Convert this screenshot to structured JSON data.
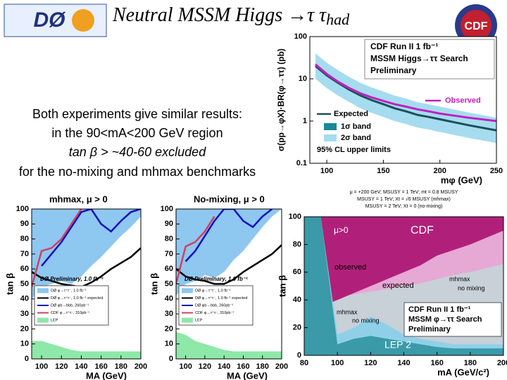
{
  "title": "Neutral MSSM Higgs →τ τ",
  "title_sub": "had",
  "logos": {
    "d0": "DØ",
    "cdf": "CDF"
  },
  "summary": [
    "Both experiments give similar results:",
    "in the 90<mA<200 GeV region",
    "tan β > ~40-60 excluded",
    "for the no-mixing and mhmax benchmarks"
  ],
  "chart_data": [
    {
      "type": "line",
      "x_label": "mφ (GeV)",
      "y_label": "σ(pp→φX)·BR(φ→ττ) (pb)",
      "log_y": true,
      "x": [
        90,
        100,
        110,
        120,
        130,
        140,
        150,
        160,
        170,
        180,
        190,
        200,
        225,
        250
      ],
      "xlim": [
        85,
        250
      ],
      "ylim": [
        0.1,
        100
      ],
      "xticks": [
        100,
        150,
        200,
        250
      ],
      "yticks": [
        0.1,
        1,
        10,
        100
      ],
      "series": [
        {
          "name": "Expected",
          "style": "line",
          "color": "#1d4f5a",
          "values": [
            20,
            12,
            8,
            5.5,
            4,
            3.1,
            2.5,
            2.0,
            1.7,
            1.4,
            1.25,
            1.1,
            0.8,
            0.6
          ]
        },
        {
          "name": "1σ  band",
          "style": "band",
          "color": "#17899a",
          "low": [
            14,
            8.4,
            5.6,
            3.9,
            2.8,
            2.2,
            1.75,
            1.4,
            1.2,
            1.0,
            0.88,
            0.77,
            0.56,
            0.42
          ],
          "high": [
            28,
            17,
            11,
            7.7,
            5.6,
            4.3,
            3.5,
            2.8,
            2.4,
            2.0,
            1.75,
            1.5,
            1.1,
            0.84
          ]
        },
        {
          "name": "2σ  band",
          "style": "band",
          "color": "#a6dcef",
          "low": [
            10,
            6,
            4,
            2.8,
            2,
            1.55,
            1.25,
            1.0,
            0.85,
            0.7,
            0.63,
            0.55,
            0.4,
            0.3
          ],
          "high": [
            40,
            24,
            16,
            11,
            8,
            6.2,
            5,
            4,
            3.4,
            2.8,
            2.5,
            2.2,
            1.6,
            1.2
          ]
        },
        {
          "name": "Observed",
          "style": "line",
          "color": "#c020c0",
          "values": [
            22,
            13,
            8.5,
            6,
            4.5,
            3.6,
            3.0,
            2.5,
            2.2,
            1.9,
            1.7,
            1.5,
            1.2,
            1.0
          ]
        }
      ],
      "legend_note": "95% CL upper limits",
      "legend_box": [
        "CDF Run II  1 fb⁻¹",
        "MSSM Higgs→ττ  Search",
        "Preliminary"
      ]
    },
    {
      "type": "line",
      "title": "mhmax, μ > 0",
      "x_label": "MA (GeV)",
      "y_label": "tan β",
      "x": [
        90,
        100,
        110,
        120,
        130,
        140,
        150,
        160,
        170,
        180,
        190,
        200
      ],
      "xlim": [
        90,
        200
      ],
      "ylim": [
        0,
        100
      ],
      "xticks": [
        100,
        120,
        140,
        160,
        180,
        200
      ],
      "yticks": [
        0,
        10,
        20,
        30,
        40,
        50,
        60,
        70,
        80,
        90,
        100
      ],
      "series": [
        {
          "name": "DØ φ→τ⁺τ⁻, 1.0 fb⁻¹",
          "style": "area-above",
          "color": "#8ec7f0",
          "values": [
            40,
            48,
            50,
            52,
            50,
            55,
            62,
            68,
            75,
            82,
            88,
            95
          ]
        },
        {
          "name": "DØ φ→τ⁺τ⁻, 1.0 fb⁻¹ expected",
          "style": "line",
          "color": "#000000",
          "values": [
            58,
            54,
            52,
            50,
            49,
            48,
            51,
            55,
            60,
            64,
            68,
            74
          ]
        },
        {
          "name": "DØ φb→bbb, 260pb⁻¹",
          "style": "line",
          "color": "#1010c0",
          "values": [
            null,
            62,
            70,
            78,
            88,
            98,
            100,
            90,
            85,
            92,
            98,
            100
          ]
        },
        {
          "name": "CDF φ→τ⁺τ⁻, 310pb⁻¹",
          "style": "line",
          "color": "#d04060",
          "values": [
            48,
            72,
            74,
            80,
            90,
            100,
            null,
            null,
            null,
            null,
            null,
            null
          ]
        },
        {
          "name": "LEP",
          "style": "area-below",
          "color": "#8ee8a8",
          "values": [
            12,
            12,
            10,
            8,
            6,
            5,
            5,
            5,
            5,
            5,
            5,
            5
          ]
        }
      ],
      "annotation": "DØ Preliminary, 1.0 fb⁻¹"
    },
    {
      "type": "line",
      "title": "No-mixing, μ > 0",
      "x_label": "MA (GeV)",
      "y_label": "tan β",
      "x": [
        90,
        100,
        110,
        120,
        130,
        140,
        150,
        160,
        170,
        180,
        190,
        200
      ],
      "xlim": [
        90,
        200
      ],
      "ylim": [
        0,
        100
      ],
      "xticks": [
        100,
        120,
        140,
        160,
        180,
        200
      ],
      "yticks": [
        0,
        10,
        20,
        30,
        40,
        50,
        60,
        70,
        80,
        90,
        100
      ],
      "series": [
        {
          "name": "DØ φ→τ⁺τ⁻, 1.0 fb⁻¹",
          "style": "area-above",
          "color": "#8ec7f0",
          "values": [
            42,
            50,
            52,
            56,
            54,
            58,
            66,
            72,
            80,
            88,
            95,
            100
          ]
        },
        {
          "name": "DØ φ→τ⁺τ⁻, 1.0 fb⁻¹ expected",
          "style": "line",
          "color": "#000000",
          "values": [
            60,
            55,
            53,
            52,
            50,
            50,
            53,
            58,
            62,
            66,
            70,
            76
          ]
        },
        {
          "name": "DØ φb→bbb, 260pb⁻¹",
          "style": "line",
          "color": "#1010c0",
          "values": [
            null,
            65,
            72,
            82,
            92,
            100,
            100,
            92,
            88,
            95,
            100,
            null
          ]
        },
        {
          "name": "CDF φ→τ⁺τ⁻, 310pb⁻¹",
          "style": "line",
          "color": "#d04060",
          "values": [
            50,
            75,
            78,
            85,
            95,
            null,
            null,
            null,
            null,
            null,
            null,
            null
          ]
        },
        {
          "name": "LEP",
          "style": "area-below",
          "color": "#8ee8a8",
          "values": [
            18,
            16,
            12,
            10,
            8,
            6,
            5,
            5,
            5,
            5,
            5,
            5
          ]
        }
      ],
      "annotation": "DØ Preliminary, 1.0 fb⁻¹"
    },
    {
      "type": "line",
      "x_label": "mA (GeV/c²)",
      "y_label": "tan β",
      "header": [
        "μ = +200 GeV; MSUSY = 1 TeV; mt = 0.8 MSUSY",
        "MSUSY = 1 TeV; Xt = √6 MSUSY (mhmax)",
        "MSUSY = 2 TeV; Xt = 0 (no-mixing)"
      ],
      "x": [
        80,
        90,
        100,
        110,
        120,
        130,
        140,
        150,
        160,
        170,
        180,
        190,
        200
      ],
      "xlim": [
        80,
        200
      ],
      "ylim": [
        0,
        100
      ],
      "xticks": [
        80,
        100,
        120,
        140,
        160,
        180,
        200
      ],
      "yticks": [
        0,
        20,
        40,
        60,
        80,
        100
      ],
      "series": [
        {
          "name": "expected",
          "style": "area-above",
          "color": "#e6a8d4",
          "values": [
            null,
            40,
            42,
            44,
            46,
            48,
            50,
            52,
            55,
            58,
            60,
            63,
            66
          ]
        },
        {
          "name": "observed",
          "style": "area-above",
          "color": "#b0207a",
          "values": [
            null,
            35,
            40,
            45,
            50,
            55,
            60,
            65,
            72,
            76,
            80,
            85,
            90
          ]
        },
        {
          "style": "area-below",
          "color": "#8fd0e8",
          "values": [
            100,
            100,
            15,
            20,
            28,
            22,
            15,
            12,
            10,
            8,
            8,
            8,
            8
          ]
        },
        {
          "style": "area-below",
          "color": "#3a9aa8",
          "values": [
            100,
            100,
            8,
            12,
            14,
            12,
            10,
            8,
            6,
            5,
            5,
            5,
            5
          ]
        }
      ],
      "annotations": [
        "μ>0",
        "CDF",
        "mhmax",
        "no mixing",
        "mhmax",
        "no mixing",
        "LEP 2"
      ],
      "legend_box": [
        "CDF Run II  1 fb⁻¹",
        "MSSM φ→ττ Search",
        "Preliminary"
      ]
    }
  ]
}
